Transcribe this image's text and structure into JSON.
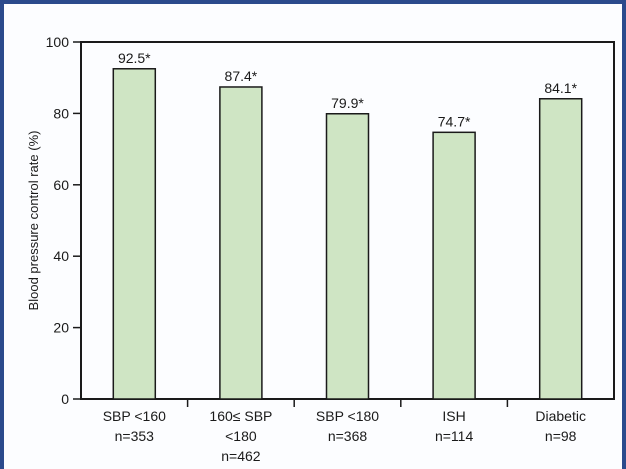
{
  "chart_data": {
    "type": "bar",
    "categories": [
      [
        "SBP <160",
        "n=353"
      ],
      [
        "160≤ SBP",
        "<180",
        "n=462"
      ],
      [
        "SBP <180",
        "n=368"
      ],
      [
        "ISH",
        "n=114"
      ],
      [
        "Diabetic",
        "n=98"
      ]
    ],
    "values": [
      92.5,
      87.4,
      79.9,
      74.7,
      84.1
    ],
    "value_labels": [
      "92.5*",
      "87.4*",
      "79.9*",
      "74.7*",
      "84.1*"
    ],
    "ylabel": "Blood pressure control rate (%)",
    "xlabel": "",
    "ylim": [
      0,
      100
    ],
    "yticks": [
      0,
      20,
      40,
      60,
      80,
      100
    ],
    "grid": false,
    "bar_color": "#cfe5c4",
    "bar_edge_color": "#1a1a1a",
    "frame_color": "#2b4a8c"
  }
}
